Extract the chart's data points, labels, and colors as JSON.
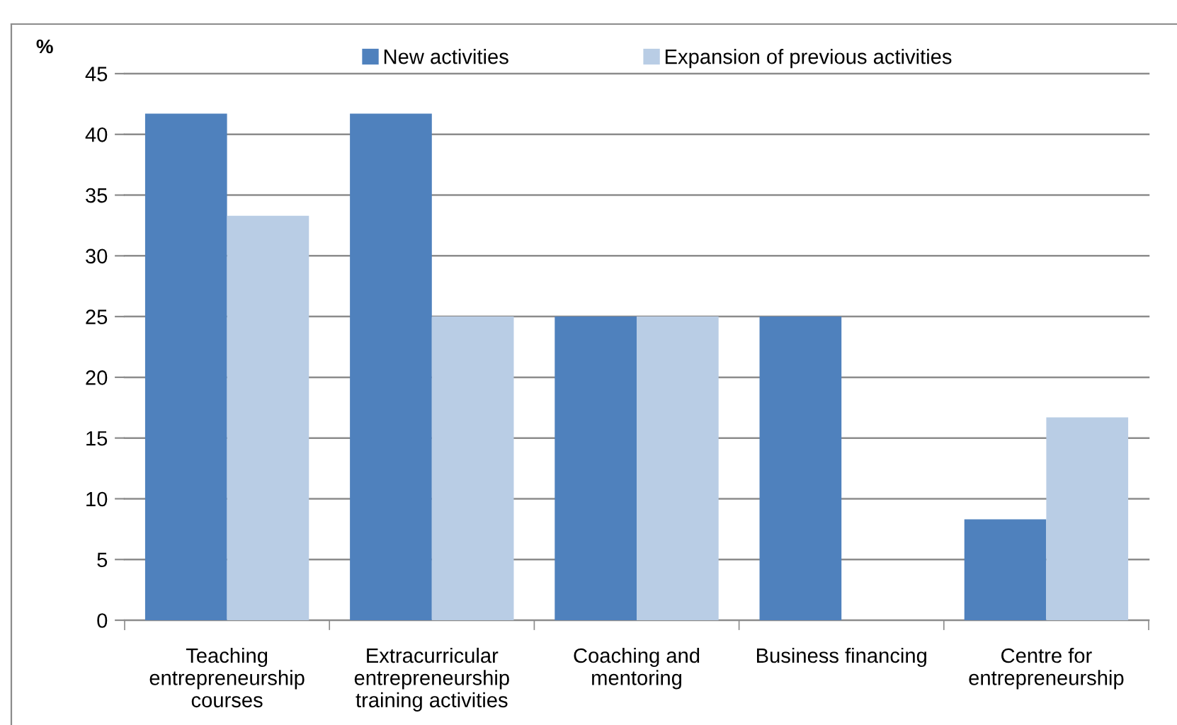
{
  "chart_data": {
    "type": "bar",
    "ylabel": "%",
    "categories": [
      "Teaching\nentrepreneurship\ncourses",
      "Extracurricular\nentrepreneurship\ntraining activities",
      "Coaching and\nmentoring",
      "Business financing",
      "Centre for\nentrepreneurship"
    ],
    "series": [
      {
        "name": "New activities",
        "color": "#4f81bd",
        "values": [
          41.7,
          41.7,
          25,
          25,
          8.3
        ]
      },
      {
        "name": "Expansion of previous activities",
        "color": "#b9cde5",
        "values": [
          33.3,
          25,
          25,
          null,
          16.7
        ]
      }
    ],
    "ylim": [
      0,
      45
    ],
    "yticks": [
      0,
      5,
      10,
      15,
      20,
      25,
      30,
      35,
      40,
      45
    ],
    "grid": "y",
    "legend": "top"
  }
}
